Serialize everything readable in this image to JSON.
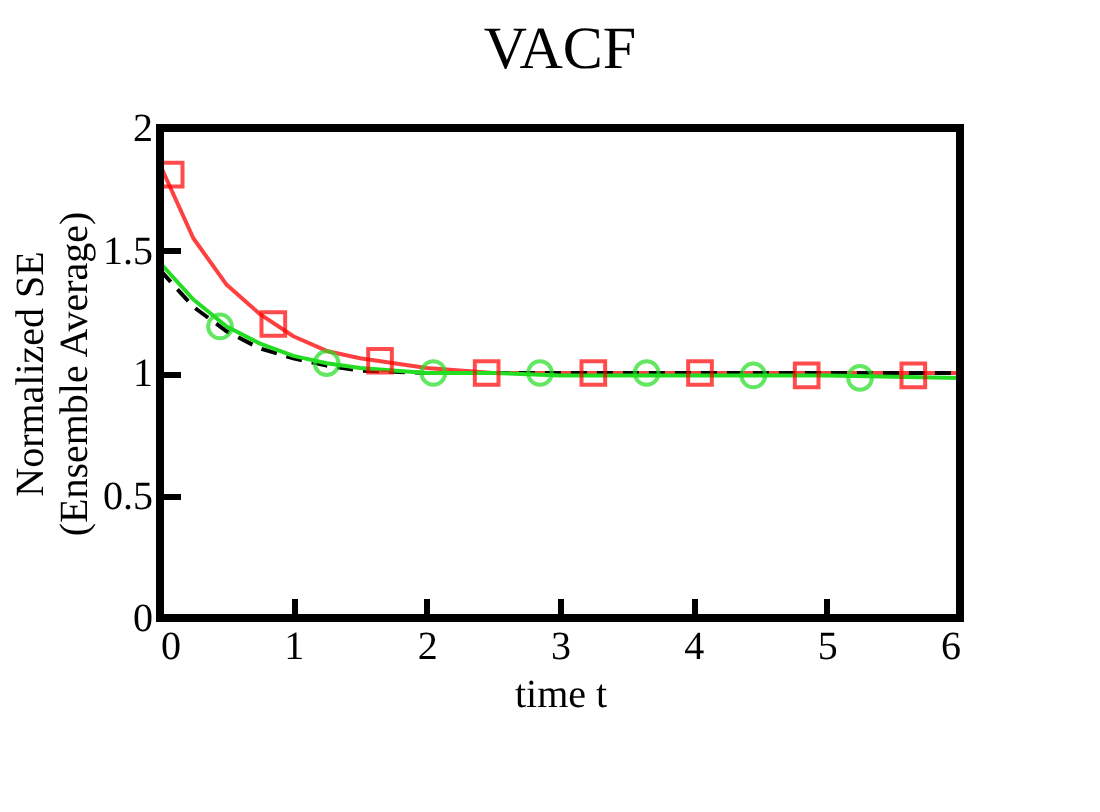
{
  "chart_data": {
    "type": "line",
    "title": "VACF",
    "xlabel": "time t",
    "ylabel": "Normalized SE\n(Ensemble Average)",
    "xlim": [
      0,
      6
    ],
    "xticks": [
      0,
      1,
      2,
      3,
      4,
      5,
      6
    ],
    "ylim": [
      0,
      2
    ],
    "yticks": [
      0,
      0.5,
      1,
      1.5,
      2
    ],
    "grid": false,
    "series": [
      {
        "color": "#ff4040",
        "line_style": "solid",
        "marker": "none",
        "x": [
          0,
          0.25,
          0.5,
          0.75,
          1,
          1.25,
          1.5,
          2,
          2.5,
          3,
          4,
          5,
          6
        ],
        "values": [
          1.85,
          1.55,
          1.36,
          1.24,
          1.15,
          1.09,
          1.06,
          1.02,
          1.0,
          1.0,
          1.0,
          1.0,
          1.0
        ]
      },
      {
        "color": "#000000",
        "line_style": "dashed",
        "marker": "none",
        "x": [
          0,
          0.25,
          0.5,
          0.75,
          1,
          1.25,
          1.5,
          2,
          2.5,
          3,
          4,
          5,
          6
        ],
        "values": [
          1.42,
          1.27,
          1.17,
          1.1,
          1.06,
          1.03,
          1.01,
          1.0,
          1.0,
          1.0,
          1.0,
          1.0,
          1.0
        ]
      },
      {
        "color": "#22dd22",
        "line_style": "solid",
        "marker": "none",
        "x": [
          0,
          0.25,
          0.5,
          0.75,
          1,
          1.25,
          1.5,
          2,
          2.5,
          3,
          4,
          5,
          6
        ],
        "values": [
          1.45,
          1.3,
          1.19,
          1.12,
          1.07,
          1.04,
          1.02,
          1.0,
          1.0,
          0.99,
          0.99,
          0.99,
          0.98
        ]
      },
      {
        "type": "scatter",
        "color": "#ff0000",
        "marker": "square",
        "x": [
          0.08,
          0.85,
          1.65,
          2.45,
          3.25,
          4.05,
          4.85,
          5.65
        ],
        "values": [
          1.81,
          1.2,
          1.05,
          1.0,
          1.0,
          1.0,
          0.99,
          0.99
        ]
      },
      {
        "type": "scatter",
        "color": "#22dd22",
        "marker": "circle",
        "x": [
          0.45,
          1.25,
          2.05,
          2.85,
          3.65,
          4.45,
          5.25
        ],
        "values": [
          1.19,
          1.04,
          1.0,
          1.0,
          1.0,
          0.99,
          0.98
        ]
      }
    ]
  }
}
